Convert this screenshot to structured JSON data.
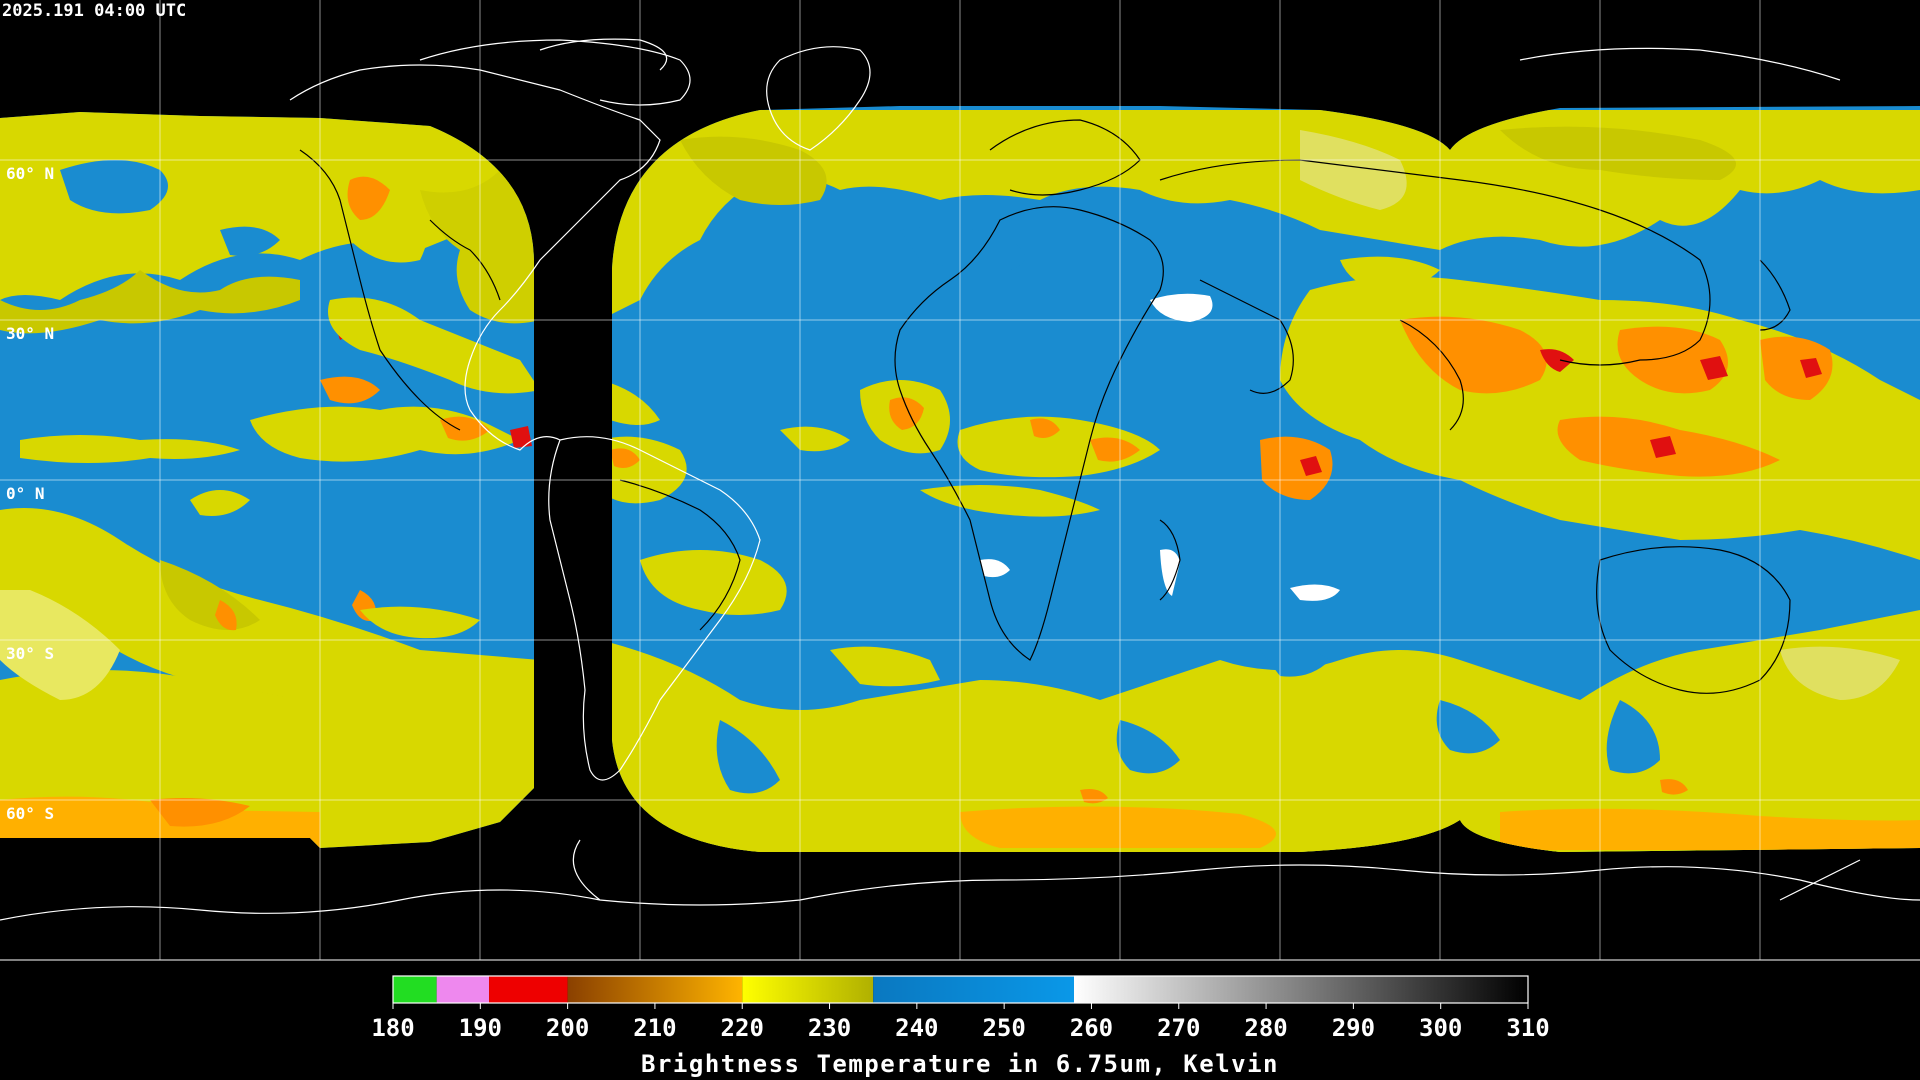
{
  "header": {
    "timestamp": "2025.191 04:00 UTC"
  },
  "map": {
    "projection": "equirectangular",
    "background_color": "#000000",
    "grid_color": "#ffffff",
    "coastline_color_land": "#000000",
    "coastline_color_space": "#ffffff",
    "latitude_labels": [
      "60° N",
      "30° N",
      "0° N",
      "30° S",
      "60° S"
    ],
    "satellite_coverage": "composite of four geostationary water-vapor views with a gap over the eastern Pacific / South America"
  },
  "colorbar": {
    "title": "Brightness Temperature in 6.75um, Kelvin",
    "min": 180,
    "max": 310,
    "ticks": [
      "180",
      "190",
      "200",
      "210",
      "220",
      "230",
      "240",
      "250",
      "260",
      "270",
      "280",
      "290",
      "300",
      "310"
    ],
    "segments": [
      {
        "from": 180,
        "to": 185,
        "color": "#22dd22"
      },
      {
        "from": 185,
        "to": 191,
        "color": "#ee88ee"
      },
      {
        "from": 191,
        "to": 200,
        "color": "#ee0000"
      },
      {
        "from": 200,
        "to": 220,
        "color_start": "#8a4000",
        "color_end": "#ffb400"
      },
      {
        "from": 220,
        "to": 235,
        "color_start": "#ffff00",
        "color_end": "#b0b000"
      },
      {
        "from": 235,
        "to": 258,
        "color_start": "#0a78c0",
        "color_end": "#0a98e8"
      },
      {
        "from": 258,
        "to": 310,
        "color_start": "#ffffff",
        "color_end": "#000000"
      }
    ]
  },
  "palette": {
    "cold_cloud": "#d8d800",
    "moist": "#dede00",
    "dry": "#1a8cd0",
    "very_dry": "#ffffff",
    "convective_core": "#ff9000",
    "deep_core": "#e01010"
  }
}
